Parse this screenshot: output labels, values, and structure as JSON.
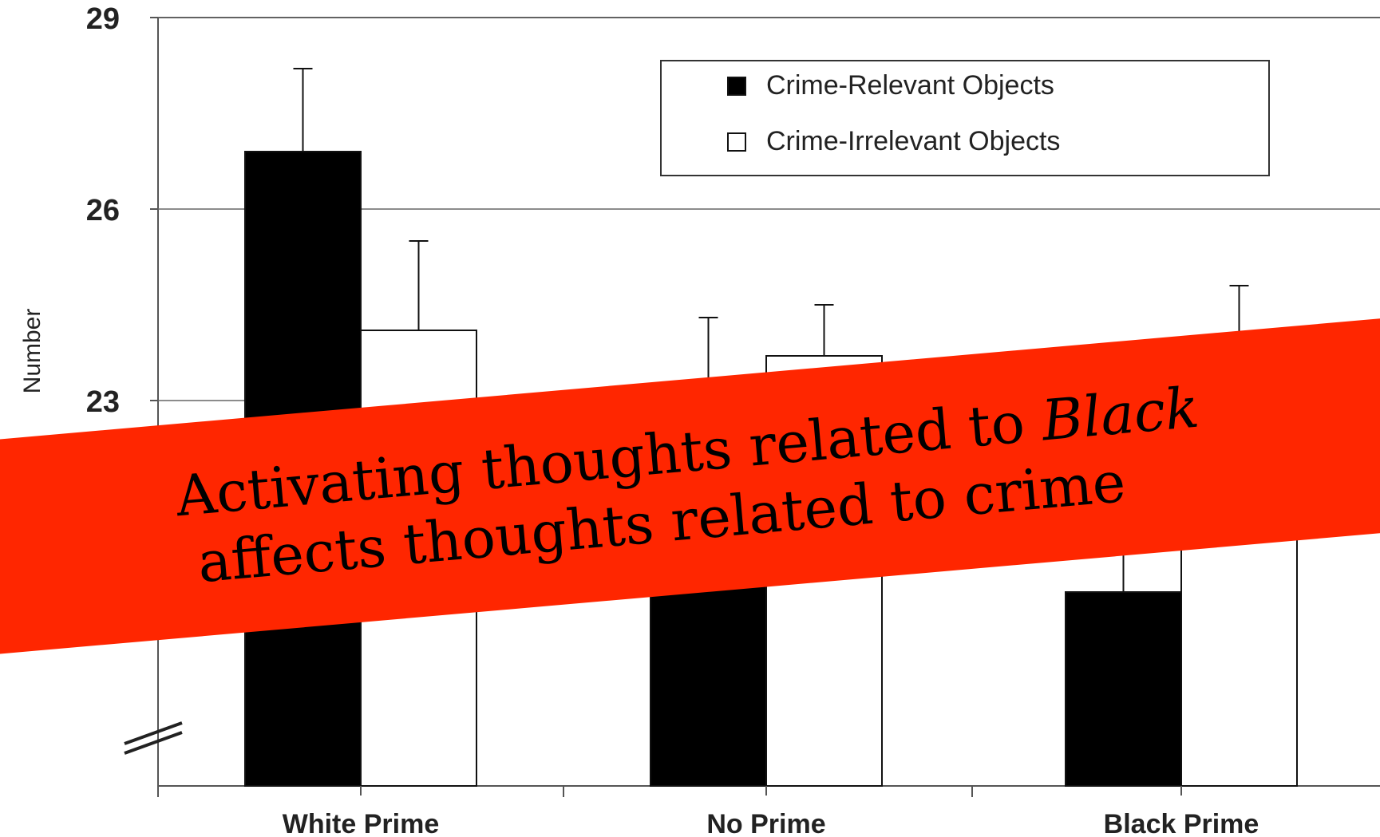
{
  "chart_data": {
    "type": "bar",
    "categories": [
      "White Prime",
      "No Prime",
      "Black Prime"
    ],
    "ylabel": "Number",
    "ylim": [
      19,
      29
    ],
    "yticks": [
      26,
      29,
      23
    ],
    "axis_break": true,
    "grid": true,
    "legend_placement": "top-right",
    "series": [
      {
        "name": "Crime-Relevant Objects",
        "values": [
          26.9,
          21.6,
          20.0
        ],
        "errors": [
          1.3,
          2.7,
          1.3
        ],
        "color": "#000000"
      },
      {
        "name": "Crime-Irrelevant Objects",
        "values": [
          24.1,
          23.7,
          23.8
        ],
        "errors": [
          1.4,
          0.8,
          1.0
        ],
        "color": "#ffffff"
      }
    ]
  },
  "banner": {
    "line1_prefix": "Activating thoughts related to ",
    "line1_emph": "Black",
    "line2": "affects thoughts related to crime",
    "color": "#ff2600"
  }
}
